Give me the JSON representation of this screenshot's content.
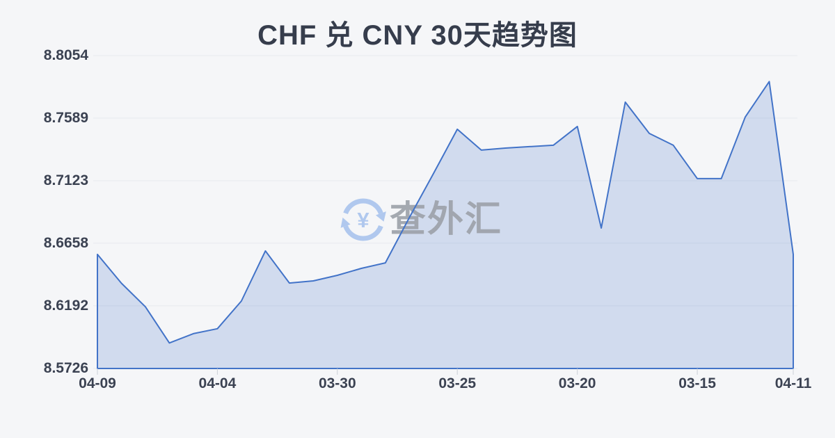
{
  "title": "CHF 兑 CNY 30天趋势图",
  "watermark": {
    "symbol": "¥",
    "text": "查外汇"
  },
  "colors": {
    "background": "#f5f6f8",
    "line": "#4273c8",
    "area_fill": "rgba(66,115,200,0.20)",
    "gridline": "#e7e9ee",
    "tick": "#ccd0d7",
    "axis_text": "#3b4252",
    "title_text": "#363d4c",
    "watermark_text": "#9ca1a9",
    "watermark_icon": "#a9c4ee"
  },
  "chart_data": {
    "type": "area",
    "title": "CHF 兑 CNY 30天趋势图",
    "point_count": 30,
    "values": [
      8.6575,
      8.636,
      8.6185,
      8.5916,
      8.5985,
      8.6022,
      8.6228,
      8.6601,
      8.6362,
      8.6378,
      8.6419,
      8.6471,
      8.6512,
      8.6849,
      8.7175,
      8.7506,
      8.7351,
      8.7366,
      8.7377,
      8.7387,
      8.7527,
      8.6771,
      8.7708,
      8.7475,
      8.7387,
      8.7139,
      8.7139,
      8.7597,
      8.7861,
      8.6575
    ],
    "x_axis_ticks": [
      {
        "label": "04-09",
        "point_index": 0
      },
      {
        "label": "04-04",
        "point_index": 5
      },
      {
        "label": "03-30",
        "point_index": 10
      },
      {
        "label": "03-25",
        "point_index": 15
      },
      {
        "label": "03-20",
        "point_index": 20
      },
      {
        "label": "03-15",
        "point_index": 25
      },
      {
        "label": "04-11",
        "point_index": 29
      }
    ],
    "y_axis_tick_labels": [
      "8.8054",
      "8.7589",
      "8.7123",
      "8.6658",
      "8.6192",
      "8.5726"
    ],
    "ylim": [
      8.5726,
      8.8054
    ],
    "xlabel": "",
    "ylabel": "",
    "grid": "horizontal-only",
    "legend_position": "none"
  }
}
